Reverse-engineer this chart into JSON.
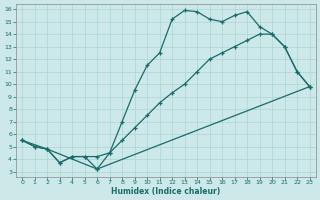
{
  "bg_color": "#cce8e8",
  "grid_color": "#b0d8d8",
  "line_color": "#1a6b6b",
  "xlabel": "Humidex (Indice chaleur)",
  "xlim": [
    -0.5,
    23.5
  ],
  "ylim": [
    2.6,
    16.4
  ],
  "xticks": [
    0,
    1,
    2,
    3,
    4,
    5,
    6,
    7,
    8,
    9,
    10,
    11,
    12,
    13,
    14,
    15,
    16,
    17,
    18,
    19,
    20,
    21,
    22,
    23
  ],
  "yticks": [
    3,
    4,
    5,
    6,
    7,
    8,
    9,
    10,
    11,
    12,
    13,
    14,
    15,
    16
  ],
  "line1_x": [
    0,
    1,
    2,
    3,
    4,
    5,
    6,
    7,
    8,
    9,
    10,
    11,
    12,
    13,
    14,
    15,
    16,
    17,
    18,
    19,
    20,
    21,
    22,
    23
  ],
  "line1_y": [
    5.5,
    5.0,
    4.8,
    3.7,
    4.2,
    4.2,
    4.2,
    4.5,
    5.5,
    6.5,
    7.5,
    8.5,
    9.3,
    10.0,
    11.0,
    12.0,
    12.5,
    13.0,
    13.5,
    14.0,
    14.0,
    13.0,
    11.0,
    9.8
  ],
  "line2_x": [
    0,
    1,
    2,
    3,
    4,
    5,
    6,
    7,
    8,
    9,
    10,
    11,
    12,
    13,
    14,
    15,
    16,
    17,
    18,
    19,
    20,
    21,
    22,
    23
  ],
  "line2_y": [
    5.5,
    5.0,
    4.8,
    3.7,
    4.2,
    4.2,
    3.2,
    4.5,
    7.0,
    9.5,
    11.5,
    12.5,
    15.2,
    15.9,
    15.8,
    15.2,
    15.0,
    15.5,
    15.8,
    14.6,
    14.0,
    13.0,
    11.0,
    9.8
  ],
  "line3_x": [
    0,
    2,
    6,
    23
  ],
  "line3_y": [
    5.5,
    4.8,
    3.2,
    9.8
  ]
}
